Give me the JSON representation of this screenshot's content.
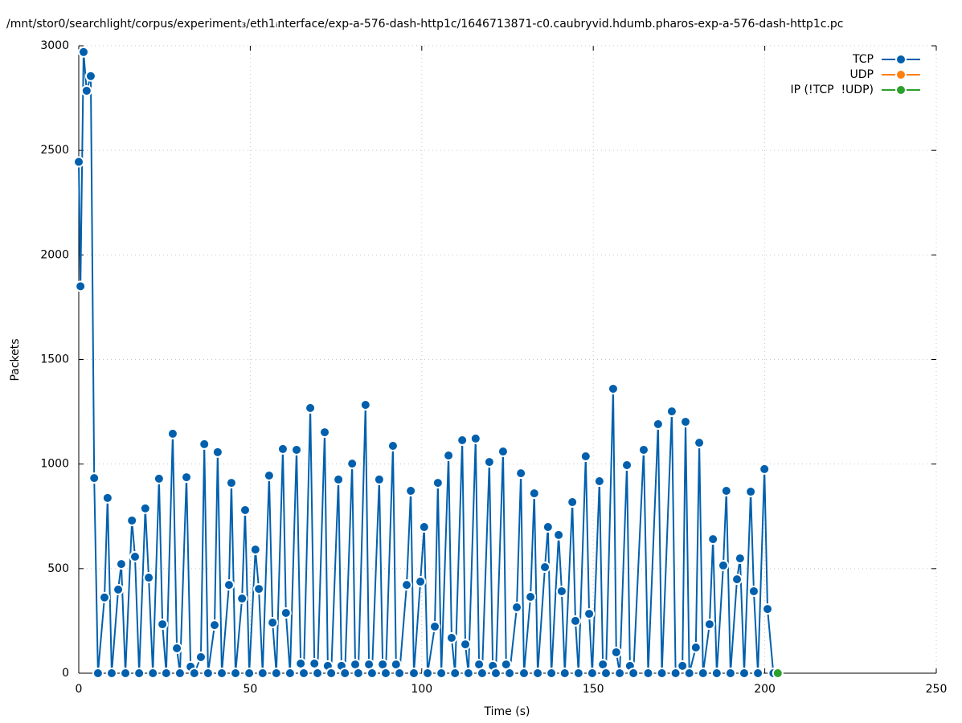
{
  "chart_data": {
    "type": "line",
    "title": "/mnt/stor0/searchlight/corpus/experiment₃/eth1ᵢnterface/exp-a-576-dash-http1c/1646713871-c0.caubryvid.hdumb.pharos-exp-a-576-dash-http1c.pc",
    "xlabel": "Time (s)",
    "ylabel": "Packets",
    "xlim": [
      0,
      250
    ],
    "xticks": [
      0,
      50,
      100,
      150,
      200,
      250
    ],
    "ylim": [
      0,
      3000
    ],
    "yticks": [
      0,
      500,
      1000,
      1500,
      2000,
      2500,
      3000
    ],
    "grid": true,
    "legend": "top-right",
    "series": [
      {
        "name": "TCP",
        "color": "#0060ad",
        "x": [
          0,
          0.5,
          1.4,
          2.3,
          3.5,
          4.5,
          5.6,
          7.5,
          8.4,
          9.6,
          11.5,
          12.4,
          13.6,
          15.5,
          16.4,
          17.6,
          19.4,
          20.4,
          21.6,
          23.4,
          24.4,
          25.5,
          27.4,
          28.6,
          29.5,
          31.4,
          32.6,
          33.7,
          35.6,
          36.6,
          37.7,
          39.6,
          40.5,
          41.7,
          43.8,
          44.5,
          45.7,
          47.6,
          48.5,
          49.7,
          51.5,
          52.5,
          53.6,
          55.5,
          56.5,
          57.6,
          59.5,
          60.4,
          61.6,
          63.5,
          64.7,
          65.6,
          67.5,
          68.7,
          69.6,
          71.7,
          72.6,
          73.6,
          75.7,
          76.6,
          77.6,
          79.7,
          80.6,
          81.5,
          83.6,
          84.6,
          85.5,
          87.6,
          88.6,
          89.5,
          91.6,
          92.5,
          93.5,
          95.6,
          96.8,
          97.7,
          99.6,
          100.7,
          101.7,
          103.8,
          104.7,
          105.7,
          107.8,
          108.7,
          109.7,
          111.8,
          112.7,
          113.6,
          115.7,
          116.7,
          117.6,
          119.7,
          120.7,
          121.6,
          123.7,
          124.6,
          125.6,
          127.7,
          128.9,
          129.8,
          131.7,
          132.8,
          133.8,
          135.9,
          136.8,
          137.8,
          139.9,
          140.8,
          141.7,
          143.9,
          144.8,
          145.7,
          147.8,
          148.8,
          149.7,
          151.8,
          152.8,
          153.7,
          155.8,
          156.7,
          157.7,
          159.8,
          160.7,
          161.7,
          164.7,
          166,
          168.9,
          170,
          172.9,
          174,
          176,
          176.9,
          178,
          179.9,
          180.9,
          182,
          183.9,
          184.9,
          186,
          187.9,
          188.8,
          190,
          191.9,
          192.8,
          194,
          195.9,
          196.8,
          198,
          199.9,
          200.8,
          202.5
        ],
        "values": [
          2445,
          1850,
          2970,
          2785,
          2855,
          933,
          0,
          362,
          838,
          0,
          400,
          522,
          0,
          730,
          557,
          0,
          788,
          457,
          0,
          930,
          234,
          0,
          1145,
          119,
          0,
          937,
          31,
          0,
          77,
          1095,
          0,
          230,
          1057,
          0,
          422,
          910,
          0,
          357,
          780,
          0,
          591,
          403,
          0,
          945,
          242,
          0,
          1072,
          288,
          0,
          1068,
          46,
          0,
          1268,
          46,
          0,
          1152,
          35,
          0,
          926,
          35,
          0,
          1002,
          42,
          0,
          1283,
          42,
          0,
          926,
          42,
          0,
          1087,
          42,
          0,
          422,
          872,
          0,
          438,
          699,
          0,
          223,
          910,
          0,
          1041,
          169,
          0,
          1114,
          138,
          0,
          1122,
          42,
          0,
          1010,
          35,
          0,
          1060,
          42,
          0,
          315,
          956,
          0,
          365,
          860,
          0,
          507,
          699,
          0,
          661,
          392,
          0,
          818,
          250,
          0,
          1037,
          284,
          0,
          918,
          42,
          0,
          1360,
          100,
          0,
          995,
          35,
          0,
          1068,
          0,
          1191,
          0,
          1252,
          0,
          35,
          1202,
          0,
          123,
          1102,
          0,
          234,
          641,
          0,
          515,
          872,
          0,
          449,
          549,
          0,
          868,
          392,
          0,
          976,
          307,
          0
        ]
      },
      {
        "name": "UDP",
        "color": "#ff7f0e",
        "x": [],
        "values": []
      },
      {
        "name": "IP (!TCP  !UDP)",
        "color": "#2ca02c",
        "x": [
          203.8
        ],
        "values": [
          0
        ]
      }
    ]
  }
}
